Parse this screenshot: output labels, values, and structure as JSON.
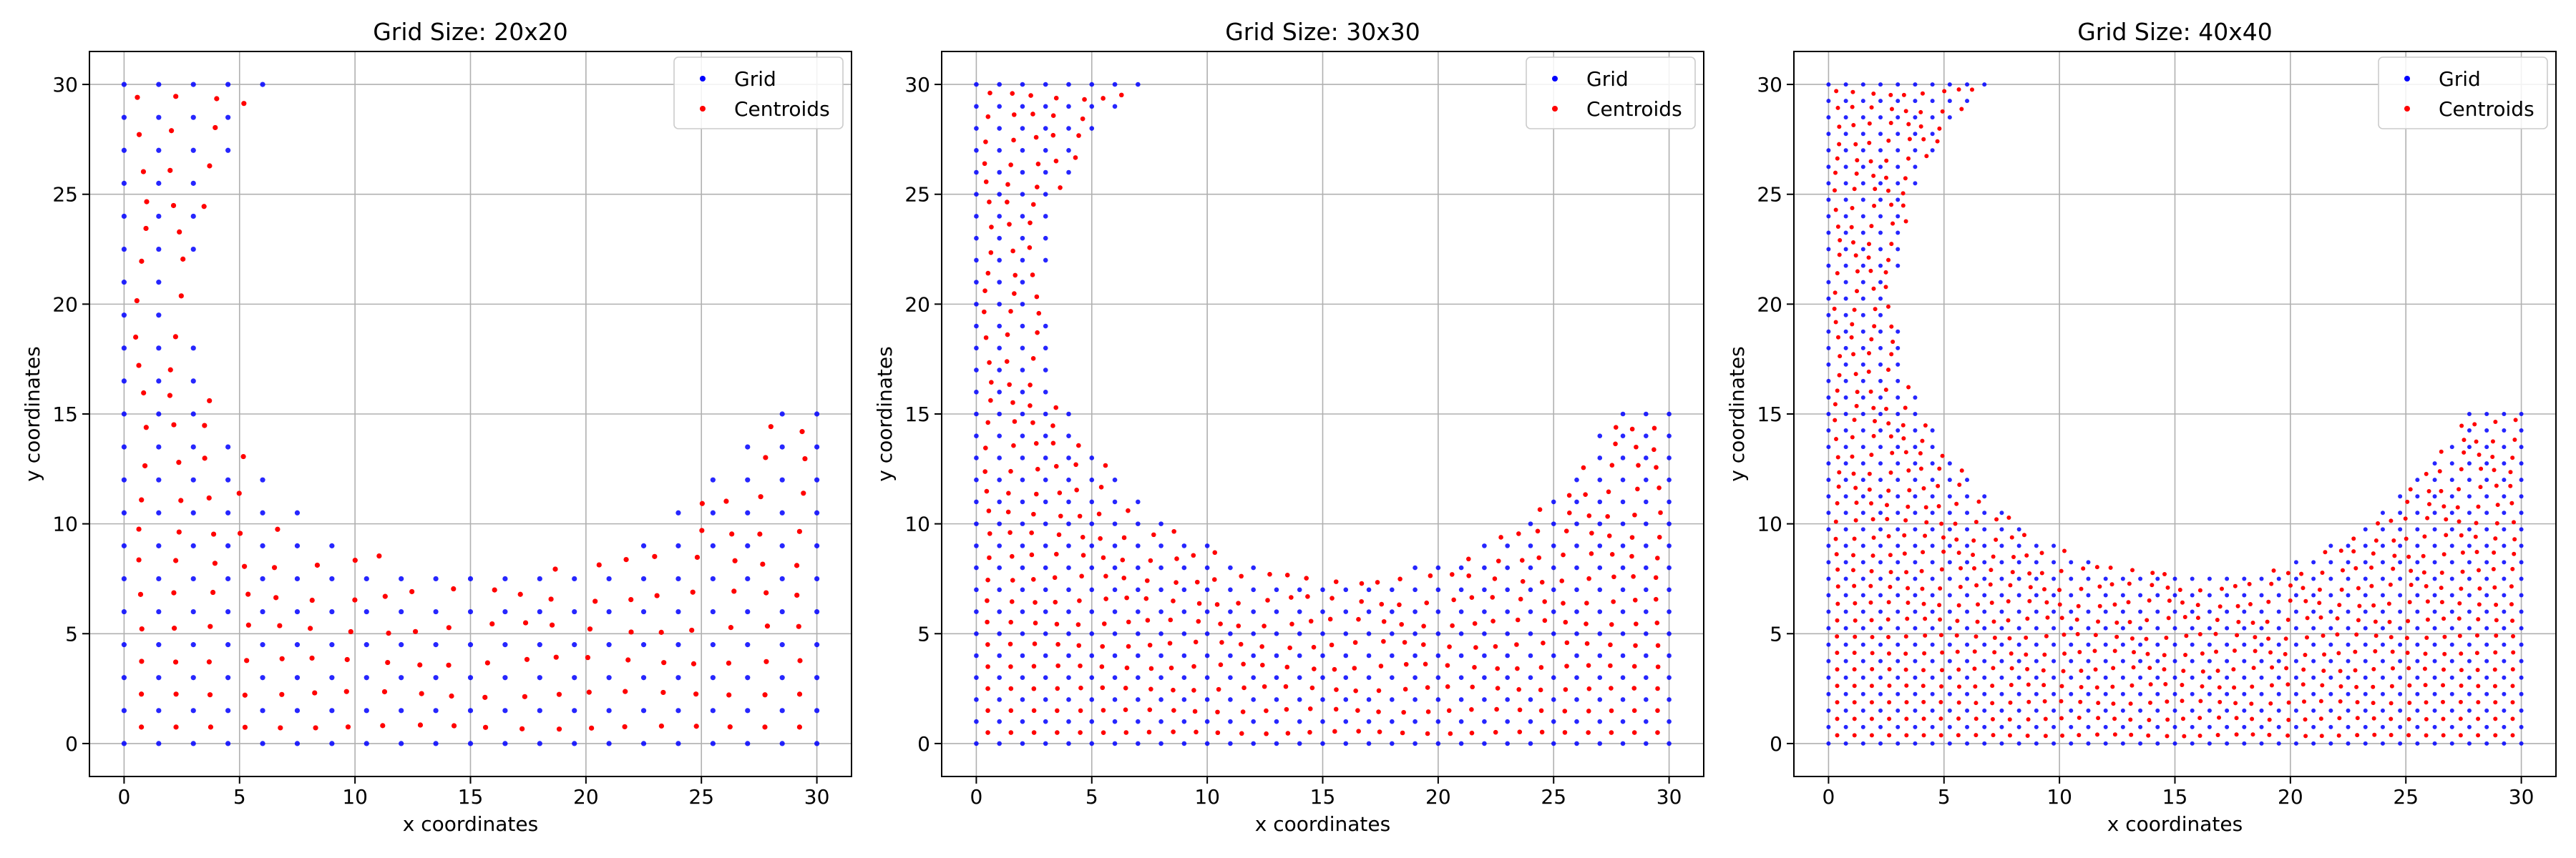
{
  "figure": {
    "background": "#ffffff"
  },
  "chart_data": [
    {
      "type": "scatter",
      "title": "Grid Size: 20x20",
      "xlabel": "x coordinates",
      "ylabel": "y coordinates",
      "xlim": [
        -1.5,
        31.5
      ],
      "ylim": [
        -1.5,
        31.5
      ],
      "xticks": [
        "0",
        "5",
        "10",
        "15",
        "20",
        "25",
        "30"
      ],
      "yticks": [
        "0",
        "5",
        "10",
        "15",
        "20",
        "25",
        "30"
      ],
      "grid": true,
      "legend": {
        "position": "top-right",
        "entries": [
          "Grid",
          "Centroids"
        ]
      },
      "series": [
        {
          "name": "Grid",
          "color": "#0000ff",
          "description": "20x20 mesh nodes over the L-shaped domain with curved cut-out"
        },
        {
          "name": "Centroids",
          "color": "#ff0000",
          "description": "element centroids of the 20x20 mesh"
        }
      ]
    },
    {
      "type": "scatter",
      "title": "Grid Size: 30x30",
      "xlabel": "x coordinates",
      "ylabel": "y coordinates",
      "xlim": [
        -1.5,
        31.5
      ],
      "ylim": [
        -1.5,
        31.5
      ],
      "xticks": [
        "0",
        "5",
        "10",
        "15",
        "20",
        "25",
        "30"
      ],
      "yticks": [
        "0",
        "5",
        "10",
        "15",
        "20",
        "25",
        "30"
      ],
      "grid": true,
      "legend": {
        "position": "top-right",
        "entries": [
          "Grid",
          "Centroids"
        ]
      },
      "series": [
        {
          "name": "Grid",
          "color": "#0000ff",
          "description": "30x30 mesh nodes over the same domain"
        },
        {
          "name": "Centroids",
          "color": "#ff0000",
          "description": "element centroids of the 30x30 mesh"
        }
      ]
    },
    {
      "type": "scatter",
      "title": "Grid Size: 40x40",
      "xlabel": "x coordinates",
      "ylabel": "y coordinates",
      "xlim": [
        -1.5,
        31.5
      ],
      "ylim": [
        -1.5,
        31.5
      ],
      "xticks": [
        "0",
        "5",
        "10",
        "15",
        "20",
        "25",
        "30"
      ],
      "yticks": [
        "0",
        "5",
        "10",
        "15",
        "20",
        "25",
        "30"
      ],
      "grid": true,
      "legend": {
        "position": "top-right",
        "entries": [
          "Grid",
          "Centroids"
        ]
      },
      "series": [
        {
          "name": "Grid",
          "color": "#0000ff",
          "description": "40x40 mesh nodes over the same domain"
        },
        {
          "name": "Centroids",
          "color": "#ff0000",
          "description": "element centroids of the 40x40 mesh"
        }
      ]
    }
  ]
}
